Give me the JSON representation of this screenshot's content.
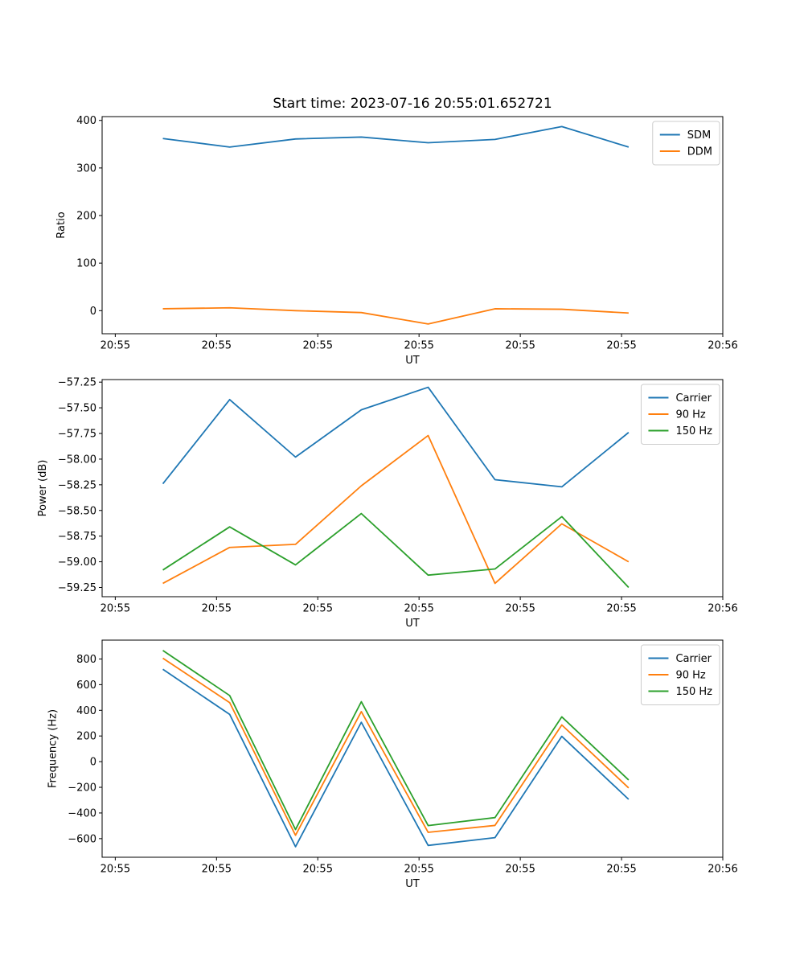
{
  "figure": {
    "title": "Start time: 2023-07-16 20:55:01.652721",
    "background": "#ffffff"
  },
  "chart_data": [
    {
      "type": "line",
      "xlabel": "UT",
      "ylabel": "Ratio",
      "x_seconds": [
        4.7,
        11.3,
        17.8,
        24.3,
        30.9,
        37.5,
        44.1,
        50.7
      ],
      "series": [
        {
          "name": "SDM",
          "color": "#1f77b4",
          "values": [
            362,
            344,
            361,
            365,
            353,
            360,
            387,
            344
          ]
        },
        {
          "name": "DDM",
          "color": "#ff7f0e",
          "values": [
            4,
            6,
            0,
            -4,
            -28,
            4,
            3,
            -5
          ]
        }
      ],
      "xlim_seconds": [
        -1.3,
        60
      ],
      "ylim": [
        -48.5,
        408
      ],
      "xticks": {
        "seconds": [
          0,
          10,
          20,
          30,
          40,
          50,
          60
        ],
        "labels": [
          "20:55",
          "20:55",
          "20:55",
          "20:55",
          "20:55",
          "20:55",
          "20:56"
        ]
      },
      "yticks": {
        "values": [
          0,
          100,
          200,
          300,
          400
        ],
        "labels": [
          "0",
          "100",
          "200",
          "300",
          "400"
        ]
      },
      "legend": {
        "visible": true,
        "location": "upper right",
        "entries": [
          "SDM",
          "DDM"
        ]
      },
      "grid": false
    },
    {
      "type": "line",
      "xlabel": "UT",
      "ylabel": "Power (dB)",
      "x_seconds": [
        4.7,
        11.3,
        17.8,
        24.3,
        30.9,
        37.5,
        44.1,
        50.7
      ],
      "series": [
        {
          "name": "Carrier",
          "color": "#1f77b4",
          "values": [
            -58.24,
            -57.42,
            -57.98,
            -57.52,
            -57.3,
            -58.2,
            -58.27,
            -57.74
          ]
        },
        {
          "name": "90 Hz",
          "color": "#ff7f0e",
          "values": [
            -59.21,
            -58.86,
            -58.83,
            -58.26,
            -57.77,
            -59.21,
            -58.63,
            -59.0
          ]
        },
        {
          "name": "150 Hz",
          "color": "#2ca02c",
          "values": [
            -59.08,
            -58.66,
            -59.03,
            -58.53,
            -59.13,
            -59.07,
            -58.56,
            -59.25
          ]
        }
      ],
      "xlim_seconds": [
        -1.3,
        60
      ],
      "ylim": [
        -59.34,
        -57.225
      ],
      "xticks": {
        "seconds": [
          0,
          10,
          20,
          30,
          40,
          50,
          60
        ],
        "labels": [
          "20:55",
          "20:55",
          "20:55",
          "20:55",
          "20:55",
          "20:55",
          "20:56"
        ]
      },
      "yticks": {
        "values": [
          -59.25,
          -59.0,
          -58.75,
          -58.5,
          -58.25,
          -58.0,
          -57.75,
          -57.5,
          -57.25
        ],
        "labels": [
          "−59.25",
          "−59.00",
          "−58.75",
          "−58.50",
          "−58.25",
          "−58.00",
          "−57.75",
          "−57.50",
          "−57.25"
        ]
      },
      "legend": {
        "visible": true,
        "location": "upper right",
        "entries": [
          "Carrier",
          "90 Hz",
          "150 Hz"
        ]
      },
      "grid": false
    },
    {
      "type": "line",
      "xlabel": "UT",
      "ylabel": "Frequency (Hz)",
      "x_seconds": [
        4.7,
        11.3,
        17.8,
        24.3,
        30.9,
        37.5,
        44.1,
        50.7
      ],
      "series": [
        {
          "name": "Carrier",
          "color": "#1f77b4",
          "values": [
            720,
            368,
            -663,
            307,
            -653,
            -592,
            197,
            -294
          ]
        },
        {
          "name": "90 Hz",
          "color": "#ff7f0e",
          "values": [
            806,
            460,
            -574,
            390,
            -551,
            -497,
            286,
            -205
          ]
        },
        {
          "name": "150 Hz",
          "color": "#2ca02c",
          "values": [
            866,
            515,
            -529,
            467,
            -498,
            -436,
            349,
            -143
          ]
        }
      ],
      "xlim_seconds": [
        -1.3,
        60
      ],
      "ylim": [
        -745,
        947
      ],
      "xticks": {
        "seconds": [
          0,
          10,
          20,
          30,
          40,
          50,
          60
        ],
        "labels": [
          "20:55",
          "20:55",
          "20:55",
          "20:55",
          "20:55",
          "20:55",
          "20:56"
        ]
      },
      "yticks": {
        "values": [
          -600,
          -400,
          -200,
          0,
          200,
          400,
          600,
          800
        ],
        "labels": [
          "−600",
          "−400",
          "−200",
          "0",
          "200",
          "400",
          "600",
          "800"
        ]
      },
      "legend": {
        "visible": true,
        "location": "upper right",
        "entries": [
          "Carrier",
          "90 Hz",
          "150 Hz"
        ]
      },
      "grid": false
    }
  ]
}
